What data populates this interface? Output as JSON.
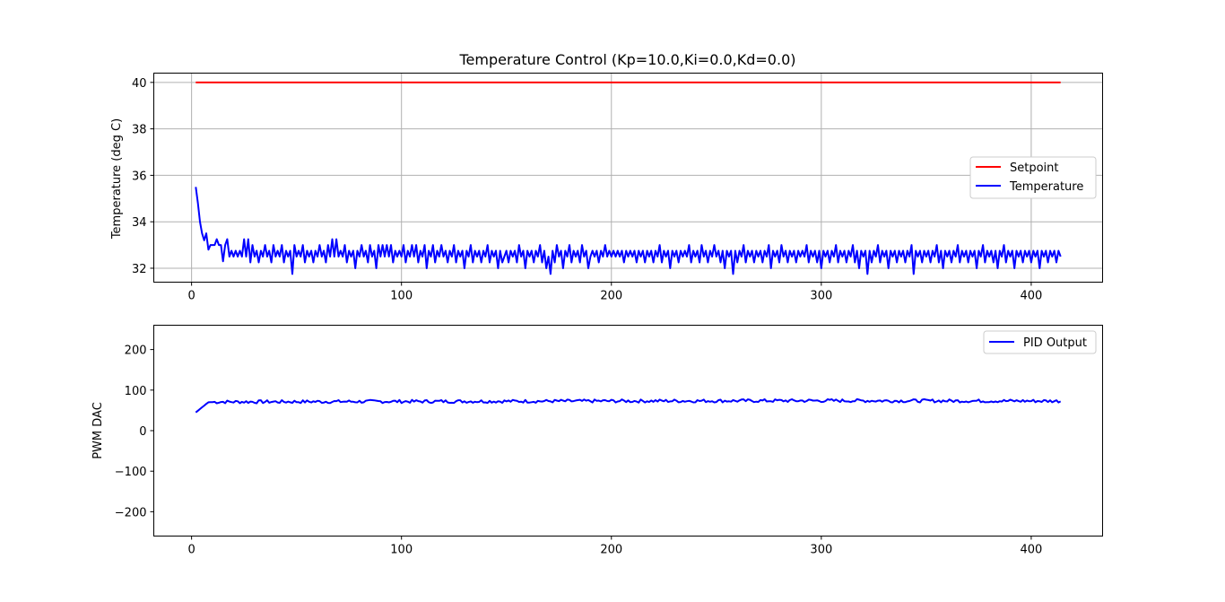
{
  "chart_data": [
    {
      "type": "line",
      "title": "Temperature Control (Kp=10.0,Ki=0.0,Kd=0.0)",
      "xlabel": "",
      "ylabel": "Temperature (deg C)",
      "xlim": [
        -18,
        434
      ],
      "ylim": [
        31.4,
        40.4
      ],
      "xticks": [
        0,
        100,
        200,
        300,
        400
      ],
      "yticks": [
        32,
        34,
        36,
        38,
        40
      ],
      "grid": true,
      "legend_position": "right",
      "series": [
        {
          "name": "Setpoint",
          "color": "#ff0000",
          "x": [
            2,
            414
          ],
          "y": [
            40,
            40
          ]
        },
        {
          "name": "Temperature",
          "color": "#0000ff",
          "x_start": 2,
          "x_step": 1,
          "y": [
            35.5,
            34.8,
            34.0,
            33.5,
            33.2,
            33.5,
            32.8,
            33.0,
            33.0,
            33.0,
            33.25,
            33.0,
            33.0,
            32.3,
            33.0,
            33.25,
            32.5,
            32.75,
            32.5,
            32.75,
            32.5,
            32.75,
            32.5,
            33.25,
            32.5,
            33.25,
            32.25,
            33.0,
            32.5,
            32.75,
            32.25,
            32.75,
            32.5,
            33.0,
            32.5,
            32.75,
            32.25,
            33.0,
            32.5,
            32.75,
            32.5,
            33.0,
            32.25,
            32.75,
            32.5,
            32.75,
            31.75,
            33.0,
            32.5,
            32.75,
            32.5,
            33.0,
            32.25,
            32.75,
            32.5,
            32.75,
            32.25,
            32.75,
            32.5,
            33.0,
            32.5,
            32.75,
            32.25,
            33.0,
            32.5,
            33.25,
            32.5,
            33.25,
            32.5,
            32.75,
            32.5,
            33.0,
            32.25,
            32.75,
            32.5,
            32.75,
            32.0,
            32.75,
            32.5,
            33.0,
            32.5,
            32.75,
            32.25,
            33.0,
            32.5,
            32.75,
            32.0,
            33.0,
            32.5,
            33.0,
            32.5,
            33.0,
            32.5,
            33.0,
            32.25,
            32.75,
            32.5,
            32.75,
            32.5,
            33.0,
            32.25,
            32.75,
            32.5,
            33.0,
            32.5,
            33.0,
            32.25,
            32.75,
            32.5,
            33.0,
            32.0,
            32.75,
            32.5,
            33.0,
            32.25,
            32.75,
            32.5,
            33.0,
            32.5,
            32.75,
            32.25,
            32.75,
            32.5,
            33.0,
            32.25,
            32.75,
            32.5,
            32.75,
            32.0,
            32.75,
            32.5,
            33.0,
            32.25,
            32.75,
            32.5,
            32.75,
            32.25,
            32.75,
            32.5,
            33.0,
            32.25,
            32.75,
            32.5,
            32.75,
            32.0,
            32.75,
            32.25,
            32.5,
            32.75,
            32.25,
            32.75,
            32.5,
            32.75,
            32.25,
            33.0,
            32.5,
            32.75,
            32.0,
            32.75,
            32.5,
            32.75,
            32.25,
            32.75,
            32.5,
            33.0,
            32.25,
            32.75,
            32.0,
            32.5,
            31.75,
            32.75,
            32.25,
            33.0,
            32.5,
            32.75,
            32.0,
            32.75,
            32.5,
            33.0,
            32.25,
            32.75,
            32.5,
            32.75,
            32.25,
            33.0,
            32.5,
            32.75,
            32.0,
            32.5,
            32.75,
            32.5,
            32.75,
            32.25,
            32.75,
            32.5,
            33.0,
            32.5,
            32.75,
            32.5,
            32.75,
            32.5,
            32.75,
            32.5,
            32.75,
            32.25,
            32.75,
            32.5,
            32.75,
            32.5,
            32.75,
            32.25,
            32.75,
            32.5,
            32.75,
            32.25,
            32.75,
            32.5,
            32.75,
            32.25,
            32.75,
            32.5,
            33.0,
            32.25,
            32.75,
            32.5,
            32.75,
            32.0,
            32.75,
            32.5,
            32.75,
            32.25,
            32.75,
            32.5,
            32.75,
            32.5,
            33.0,
            32.25,
            32.75,
            32.5,
            32.75,
            32.25,
            33.0,
            32.5,
            32.75,
            32.25,
            32.75,
            32.5,
            33.0,
            32.5,
            32.75,
            32.25,
            32.75,
            32.0,
            32.75,
            32.5,
            32.75,
            31.75,
            32.75,
            32.25,
            32.75,
            32.5,
            33.0,
            32.25,
            32.75,
            32.5,
            32.75,
            32.25,
            32.75,
            32.5,
            32.75,
            32.25,
            32.75,
            32.5,
            33.0,
            32.0,
            32.75,
            32.5,
            32.75,
            32.25,
            33.0,
            32.5,
            32.75,
            32.25,
            32.75,
            32.5,
            32.75,
            32.25,
            32.75,
            32.5,
            32.75,
            32.5,
            33.0,
            32.25,
            32.75,
            32.5,
            32.75,
            32.25,
            32.75,
            32.0,
            32.75,
            32.5,
            32.75,
            32.25,
            32.75,
            32.5,
            33.0,
            32.25,
            32.75,
            32.5,
            32.75,
            32.25,
            32.75,
            32.5,
            33.0,
            32.25,
            32.75,
            32.0,
            32.75,
            32.5,
            32.75,
            31.75,
            32.75,
            32.25,
            32.75,
            32.5,
            33.0,
            32.25,
            32.75,
            32.5,
            32.75,
            32.0,
            32.75,
            32.5,
            32.75,
            32.25,
            32.75,
            32.5,
            32.75,
            32.25,
            32.75,
            32.5,
            33.0,
            31.75,
            32.75,
            32.5,
            32.75,
            32.25,
            32.75,
            32.5,
            32.75,
            32.25,
            32.75,
            32.5,
            33.0,
            32.25,
            32.75,
            32.0,
            32.75,
            32.5,
            32.75,
            32.25,
            32.75,
            32.5,
            33.0,
            32.25,
            32.75,
            32.5,
            32.75,
            32.25,
            32.75,
            32.5,
            32.75,
            32.0,
            32.75,
            32.5,
            33.0,
            32.25,
            32.75,
            32.5,
            32.75,
            32.25,
            32.75,
            32.0,
            32.75,
            32.5,
            33.0,
            32.25,
            32.75,
            32.5,
            32.75,
            32.0,
            32.75,
            32.5,
            32.75,
            32.25,
            32.75,
            32.5,
            32.75,
            32.25,
            32.75,
            32.5,
            32.75,
            32.0,
            32.75,
            32.5,
            32.75,
            32.25,
            32.75,
            32.5,
            32.75,
            32.25,
            32.75,
            32.5
          ]
        }
      ]
    },
    {
      "type": "line",
      "title": "",
      "xlabel": "",
      "ylabel": "PWM DAC",
      "xlim": [
        -18,
        434
      ],
      "ylim": [
        -260,
        260
      ],
      "xticks": [
        0,
        100,
        200,
        300,
        400
      ],
      "yticks": [
        -200,
        -100,
        0,
        100,
        200
      ],
      "yticklabels": [
        "−200",
        "−100",
        "0",
        "100",
        "200"
      ],
      "grid": false,
      "legend_position": "top-right",
      "series": [
        {
          "name": "PID Output",
          "color": "#0000ff",
          "x_start": 2,
          "x_step": 1,
          "baseline_points": [
            [
              2,
              45
            ],
            [
              8,
              70
            ],
            [
              14,
              71
            ],
            [
              100,
              72
            ],
            [
              200,
              73
            ],
            [
              300,
              74
            ],
            [
              414,
              73
            ]
          ],
          "noise_amplitude": 4
        }
      ]
    }
  ]
}
